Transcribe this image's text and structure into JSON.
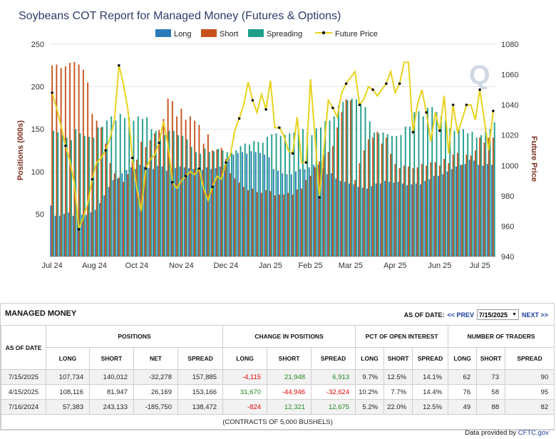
{
  "chart_data": {
    "type": "bar",
    "title": "Soybeans COT Report for Managed Money (Futures & Options)",
    "ylabel": "Positions (000s)",
    "y2label": "Future Price",
    "ylim": [
      0,
      250
    ],
    "y2lim": [
      940,
      1080
    ],
    "yticks": [
      50,
      100,
      150,
      200,
      250
    ],
    "y2ticks": [
      940,
      960,
      980,
      1000,
      1020,
      1040,
      1060,
      1080
    ],
    "xticks": [
      "Jul 24",
      "Aug 24",
      "Oct 24",
      "Nov 24",
      "Dec 24",
      "Jan 25",
      "Feb 25",
      "Mar 25",
      "Apr 25",
      "Jun 25",
      "Jul 25"
    ],
    "xtick_index": [
      0,
      9.5,
      19,
      29,
      39,
      49,
      58,
      67,
      77,
      87,
      96
    ],
    "grid": true,
    "legend_position": "top-center",
    "colors": {
      "long": "#2b7bba",
      "short": "#c8511b",
      "spreading": "#1f9e89",
      "price": "#e8d21c",
      "price_marker": "#111111"
    },
    "series": [
      {
        "name": "Long",
        "values": [
          60,
          48,
          48,
          50,
          52,
          48,
          48,
          49,
          49,
          52,
          55,
          63,
          72,
          82,
          90,
          92,
          98,
          102,
          105,
          103,
          108,
          106,
          104,
          103,
          107,
          106,
          101,
          102,
          104,
          106,
          105,
          104,
          103,
          104,
          102,
          105,
          103,
          104,
          106,
          108,
          118,
          120,
          122,
          123,
          121,
          124,
          123,
          122,
          120,
          117,
          103,
          101,
          98,
          97,
          97,
          100,
          103,
          103,
          105,
          108,
          108,
          104,
          97,
          98,
          92,
          89,
          88,
          86,
          85,
          82,
          81,
          80,
          83,
          86,
          86,
          89,
          88,
          87,
          88,
          86,
          84,
          85,
          86,
          85,
          89,
          91,
          95,
          95,
          97,
          100,
          103,
          106,
          108,
          109,
          114,
          113,
          108,
          107,
          109,
          108
        ]
      },
      {
        "name": "Short",
        "values": [
          225,
          226,
          222,
          224,
          228,
          229,
          226,
          220,
          205,
          168,
          160,
          152,
          133,
          110,
          98,
          93,
          88,
          97,
          112,
          114,
          135,
          129,
          137,
          145,
          149,
          162,
          186,
          183,
          165,
          174,
          161,
          165,
          160,
          155,
          133,
          144,
          125,
          126,
          128,
          115,
          98,
          92,
          87,
          82,
          78,
          80,
          76,
          75,
          78,
          77,
          72,
          73,
          73,
          75,
          73,
          79,
          80,
          90,
          95,
          105,
          112,
          120,
          123,
          130,
          152,
          170,
          185,
          184,
          90,
          110,
          125,
          138,
          140,
          147,
          133,
          140,
          121,
          109,
          104,
          107,
          106,
          104,
          105,
          109,
          107,
          111,
          111,
          107,
          115,
          110,
          120,
          122,
          108,
          120,
          119,
          125,
          140,
          134,
          140,
          140
        ]
      },
      {
        "name": "Spreading",
        "values": [
          148,
          146,
          143,
          140,
          137,
          150,
          145,
          142,
          141,
          140,
          152,
          153,
          160,
          165,
          160,
          168,
          163,
          164,
          160,
          165,
          162,
          164,
          150,
          148,
          145,
          143,
          148,
          148,
          143,
          142,
          138,
          129,
          123,
          121,
          127,
          123,
          124,
          127,
          125,
          123,
          122,
          125,
          130,
          133,
          132,
          136,
          135,
          134,
          141,
          144,
          145,
          142,
          143,
          145,
          146,
          148,
          150,
          146,
          143,
          151,
          152,
          159,
          160,
          165,
          178,
          182,
          184,
          186,
          185,
          181,
          176,
          159,
          146,
          145,
          146,
          144,
          142,
          142,
          143,
          153,
          153,
          170,
          171,
          165,
          175,
          176,
          170,
          165,
          160,
          151,
          148,
          150,
          150,
          145,
          147,
          140,
          143,
          152,
          150,
          158
        ]
      },
      {
        "name": "Future Price",
        "values": [
          1048,
          1038,
          1026,
          1013,
          1003,
          988,
          958,
          966,
          975,
          991,
          1002,
          1005,
          1010,
          1018,
          1030,
          1066,
          1054,
          1037,
          1005,
          985,
          970,
          998,
          1004,
          1007,
          1015,
          1029,
          1014,
          989,
          985,
          990,
          993,
          996,
          994,
          998,
          985,
          977,
          986,
          993,
          991,
          1002,
          1007,
          1023,
          1031,
          1040,
          1055,
          1043,
          1035,
          1047,
          1037,
          1056,
          1025,
          1025,
          1020,
          1010,
          1008,
          1032,
          1002,
          1002,
          1057,
          1019,
          979,
          1011,
          1043,
          1038,
          1032,
          1048,
          1054,
          1058,
          1062,
          1040,
          1044,
          1052,
          1050,
          1046,
          1050,
          1054,
          1062,
          1048,
          1054,
          1068,
          1068,
          1022,
          1040,
          1050,
          1035,
          1016,
          1035,
          1023,
          1046,
          1008,
          1040,
          1022,
          1030,
          1040,
          1040,
          1030,
          1050,
          1030,
          1010,
          1036
        ]
      }
    ]
  },
  "legend": {
    "long": "Long",
    "short": "Short",
    "spreading": "Spreading",
    "price": "Future Price"
  },
  "table": {
    "title": "MANAGED MONEY",
    "as_of_label": "AS OF DATE:",
    "prev_label": "<< PREV",
    "selected_date": "7/15/2025",
    "next_label": "NEXT >>",
    "group_headers": {
      "as_of_date": "AS OF DATE",
      "positions": "POSITIONS",
      "change": "CHANGE IN POSITIONS",
      "pct": "PCT OF OPEN INTEREST",
      "traders": "NUMBER OF TRADERS"
    },
    "sub_headers": {
      "pos_long": "LONG",
      "pos_short": "SHORT",
      "pos_net": "NET",
      "pos_spread": "SPREAD",
      "chg_long": "LONG",
      "chg_short": "SHORT",
      "chg_spread": "SPREAD",
      "pct_long": "LONG",
      "pct_short": "SHORT",
      "pct_spread": "SPREAD",
      "tr_long": "LONG",
      "tr_short": "SHORT",
      "tr_spread": "SPREAD"
    },
    "rows": [
      {
        "date": "7/15/2025",
        "long": "107,734",
        "short": "140,012",
        "net": "-32,278",
        "spread": "157,885",
        "chg_long": "-4,115",
        "chg_short": "21,948",
        "chg_spread": "6,913",
        "pct_long": "9.7%",
        "pct_short": "12.5%",
        "pct_spread": "14.1%",
        "tr_long": "62",
        "tr_short": "73",
        "tr_spread": "90"
      },
      {
        "date": "4/15/2025",
        "long": "108,116",
        "short": "81,947",
        "net": "26,169",
        "spread": "153,166",
        "chg_long": "31,670",
        "chg_short": "-44,946",
        "chg_spread": "-32,624",
        "pct_long": "10.2%",
        "pct_short": "7.7%",
        "pct_spread": "14.4%",
        "tr_long": "76",
        "tr_short": "58",
        "tr_spread": "95"
      },
      {
        "date": "7/16/2024",
        "long": "57,383",
        "short": "243,133",
        "net": "-185,750",
        "spread": "138,472",
        "chg_long": "-824",
        "chg_short": "12,321",
        "chg_spread": "12,675",
        "pct_long": "5.2%",
        "pct_short": "22.0%",
        "pct_spread": "12.5%",
        "tr_long": "49",
        "tr_short": "88",
        "tr_spread": "82"
      }
    ],
    "footnote": "(CONTRACTS OF 5,000 BUSHELS)"
  },
  "credit": {
    "prefix": "Data provided by",
    "source": "CFTC.gov"
  }
}
